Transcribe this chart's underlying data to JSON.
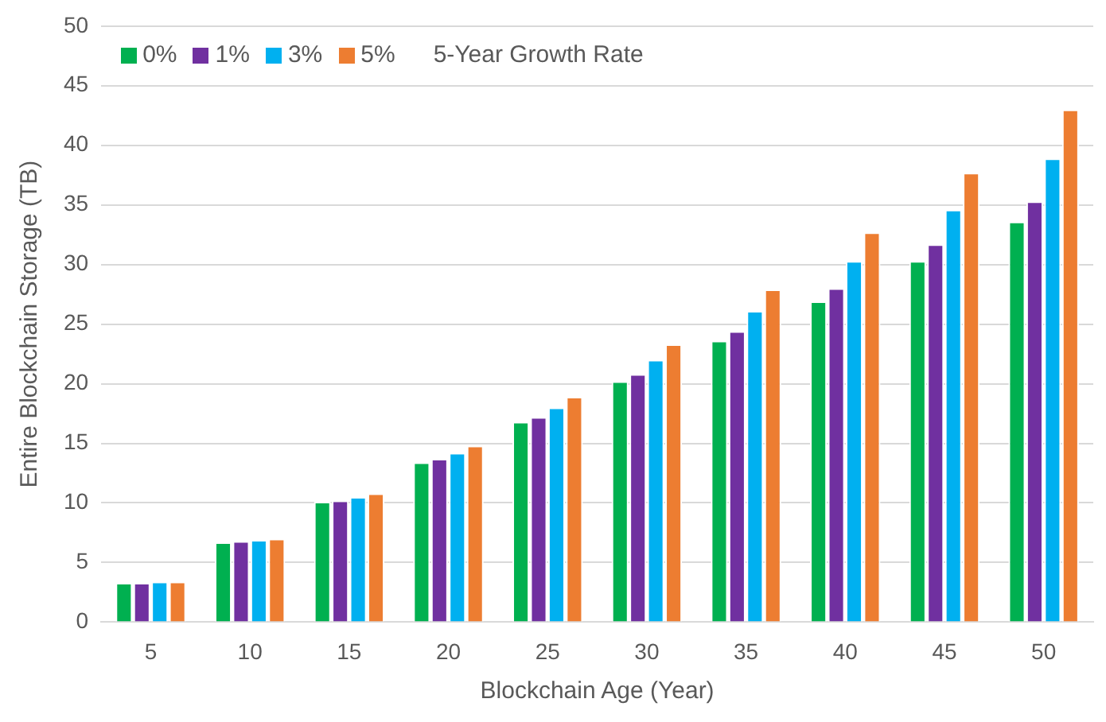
{
  "chart_data": {
    "type": "bar",
    "xlabel": "Blockchain Age (Year)",
    "ylabel": "Entire Blockchain Storage (TB)",
    "legend_title": "5-Year Growth Rate",
    "legend": "top left",
    "grid": "y",
    "categories": [
      "5",
      "10",
      "15",
      "20",
      "25",
      "30",
      "35",
      "40",
      "45",
      "50"
    ],
    "series": [
      {
        "name": "0%",
        "color": "#00b050",
        "values": [
          3.3,
          6.7,
          10.1,
          13.4,
          16.8,
          20.2,
          23.6,
          26.9,
          30.3,
          33.6
        ]
      },
      {
        "name": "1%",
        "color": "#7030a0",
        "values": [
          3.3,
          6.8,
          10.2,
          13.7,
          17.2,
          20.8,
          24.4,
          28.0,
          31.7,
          35.3
        ]
      },
      {
        "name": "3%",
        "color": "#00b0f0",
        "values": [
          3.4,
          6.9,
          10.5,
          14.2,
          18.0,
          22.0,
          26.1,
          30.3,
          34.6,
          38.9
        ]
      },
      {
        "name": "5%",
        "color": "#ed7d31",
        "values": [
          3.4,
          7.0,
          10.8,
          14.8,
          18.9,
          23.3,
          27.9,
          32.7,
          37.7,
          43.0
        ]
      }
    ],
    "ylim": [
      0,
      50
    ],
    "yticks": [
      0,
      5,
      10,
      15,
      20,
      25,
      30,
      35,
      40,
      45,
      50
    ]
  }
}
